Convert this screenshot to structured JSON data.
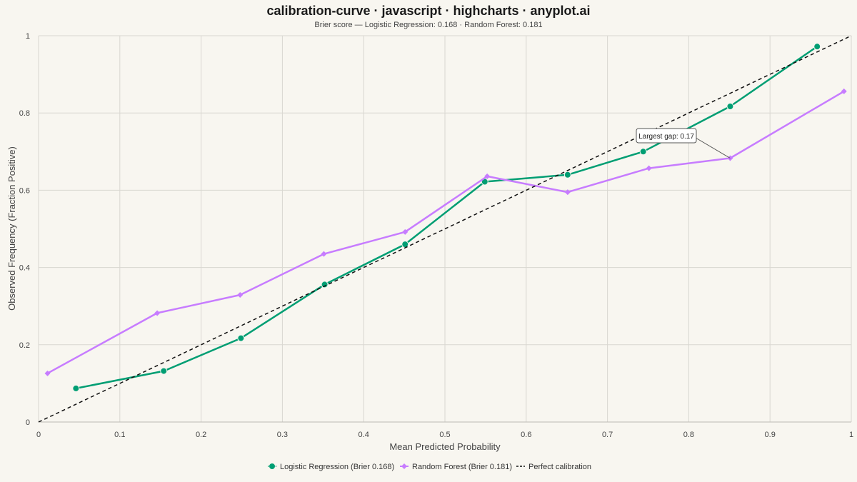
{
  "chart_data": {
    "type": "line",
    "title": "calibration-curve · javascript · highcharts · anyplot.ai",
    "subtitle": "Brier score — Logistic Regression: 0.168 · Random Forest: 0.181",
    "xlabel": "Mean Predicted Probability",
    "ylabel": "Observed Frequency (Fraction Positive)",
    "xlim": [
      0,
      1
    ],
    "ylim": [
      0,
      1
    ],
    "x_ticks": [
      "0",
      "0.1",
      "0.2",
      "0.3",
      "0.4",
      "0.5",
      "0.6",
      "0.7",
      "0.8",
      "0.9",
      "1"
    ],
    "y_ticks": [
      "0",
      "0.2",
      "0.4",
      "0.6",
      "0.8",
      "1"
    ],
    "grid": true,
    "legend_position": "bottom-center",
    "series": [
      {
        "name": "Logistic Regression (Brier 0.168)",
        "color": "#009E73",
        "marker": "circle",
        "points": [
          [
            0.046,
            0.087
          ],
          [
            0.154,
            0.132
          ],
          [
            0.249,
            0.217
          ],
          [
            0.352,
            0.356
          ],
          [
            0.451,
            0.46
          ],
          [
            0.549,
            0.622
          ],
          [
            0.651,
            0.64
          ],
          [
            0.744,
            0.7
          ],
          [
            0.851,
            0.817
          ],
          [
            0.958,
            0.972
          ]
        ]
      },
      {
        "name": "Random Forest (Brier 0.181)",
        "color": "#C77CFF",
        "marker": "diamond",
        "points": [
          [
            0.011,
            0.126
          ],
          [
            0.146,
            0.282
          ],
          [
            0.248,
            0.329
          ],
          [
            0.351,
            0.435
          ],
          [
            0.451,
            0.492
          ],
          [
            0.552,
            0.636
          ],
          [
            0.651,
            0.595
          ],
          [
            0.751,
            0.657
          ],
          [
            0.851,
            0.683
          ],
          [
            0.991,
            0.856
          ]
        ]
      },
      {
        "name": "Perfect calibration",
        "color": "#111111",
        "dash": true,
        "points": [
          [
            0,
            0
          ],
          [
            1,
            1
          ]
        ]
      }
    ],
    "annotations": [
      {
        "text": "Largest gap: 0.17",
        "target": [
          0.851,
          0.683
        ]
      }
    ]
  }
}
